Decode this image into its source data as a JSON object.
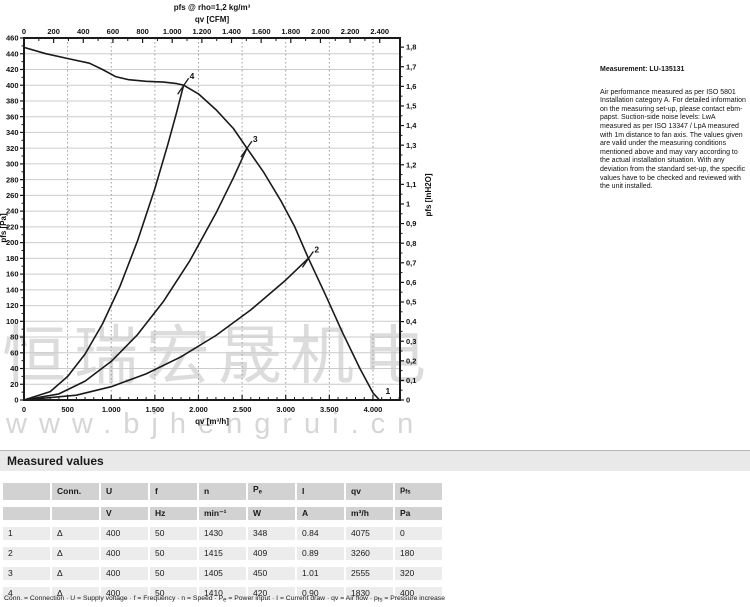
{
  "watermark": {
    "cjk": "恒瑞宏晟机电",
    "url": "www.bjhengrui.cn"
  },
  "info": {
    "measurement": "Measurement: LU-135131",
    "paragraph": "Air performance measured as per ISO 5801 Installation category A. For detailed information on the measuring set-up, please contact ebm-papst. Suction-side noise levels: LwA measured as per ISO 13347 / LpA measured with 1m distance to fan axis. The values given are valid under the measuring conditions mentioned above and may vary according to the actual installation situation. With any deviation from the standard set-up, the specific values have to be checked and reviewed with the unit installed."
  },
  "chart_data": {
    "type": "line",
    "title": "pfs @ rho=1,2 kg/m³",
    "top_axis": {
      "label": "qv [CFM]",
      "tick_values": [
        0,
        200,
        400,
        600,
        800,
        1000,
        1200,
        1400,
        1600,
        1800,
        2000,
        2200,
        2400
      ],
      "tick_labels": [
        "0",
        "200",
        "400",
        "600",
        "800",
        "1.000",
        "1.200",
        "1.400",
        "1.600",
        "1.800",
        "2.000",
        "2.200",
        "2.400"
      ],
      "m3h_per_cfm": 1.699
    },
    "x_axis": {
      "label": "qv [m³/h]",
      "max": 4310,
      "tick_values": [
        0,
        500,
        1000,
        1500,
        2000,
        2500,
        3000,
        3500,
        4000
      ],
      "tick_labels": [
        "0",
        "500",
        "1.000",
        "1.500",
        "2.000",
        "2.500",
        "3.000",
        "3.500",
        "4.000"
      ],
      "grid": [
        500,
        1000,
        1500,
        2000,
        2500,
        3000,
        3500,
        4000
      ],
      "minor_step": 100
    },
    "y_left": {
      "label": "pfs [Pa]",
      "max": 460,
      "step": 20
    },
    "y_right": {
      "label": "pfs [InH2O]",
      "tick_labels": [
        "0",
        "0,1",
        "0,2",
        "0,3",
        "0,4",
        "0,5",
        "0,6",
        "0,7",
        "0,8",
        "0,9",
        "1",
        "1,1",
        "1,2",
        "1,3",
        "1,4",
        "1,5",
        "1,6",
        "1,7",
        "1,8"
      ],
      "step": 0.1,
      "pa_per_unit": 249.1
    },
    "series": [
      {
        "name": "fan-curve",
        "points": [
          [
            0,
            448
          ],
          [
            250,
            440
          ],
          [
            500,
            434
          ],
          [
            750,
            428
          ],
          [
            900,
            420
          ],
          [
            1050,
            411
          ],
          [
            1200,
            407
          ],
          [
            1400,
            405
          ],
          [
            1600,
            404
          ],
          [
            1750,
            402
          ],
          [
            1830,
            400
          ],
          [
            2000,
            389
          ],
          [
            2200,
            369
          ],
          [
            2400,
            345
          ],
          [
            2555,
            320
          ],
          [
            2750,
            289
          ],
          [
            2950,
            252
          ],
          [
            3100,
            221
          ],
          [
            3260,
            180
          ],
          [
            3450,
            135
          ],
          [
            3650,
            86
          ],
          [
            3850,
            40
          ],
          [
            4000,
            9
          ],
          [
            4075,
            0
          ]
        ]
      },
      {
        "name": "load-curve-4",
        "points": [
          [
            0,
            0
          ],
          [
            300,
            10.7
          ],
          [
            500,
            29.9
          ],
          [
            700,
            58.5
          ],
          [
            900,
            96.7
          ],
          [
            1100,
            144.5
          ],
          [
            1300,
            201.8
          ],
          [
            1500,
            268.7
          ],
          [
            1650,
            325.1
          ],
          [
            1750,
            365.8
          ],
          [
            1830,
            400
          ]
        ]
      },
      {
        "name": "load-curve-3",
        "points": [
          [
            0,
            0
          ],
          [
            400,
            7.8
          ],
          [
            700,
            24
          ],
          [
            1000,
            49
          ],
          [
            1300,
            82.9
          ],
          [
            1600,
            125.5
          ],
          [
            1900,
            176.9
          ],
          [
            2200,
            237.3
          ],
          [
            2400,
            282.4
          ],
          [
            2555,
            320
          ]
        ]
      },
      {
        "name": "load-curve-2",
        "points": [
          [
            0,
            0
          ],
          [
            600,
            6.1
          ],
          [
            1000,
            16.9
          ],
          [
            1400,
            33.2
          ],
          [
            1800,
            54.9
          ],
          [
            2200,
            82
          ],
          [
            2600,
            114.5
          ],
          [
            3000,
            152.4
          ],
          [
            3260,
            180
          ]
        ]
      }
    ],
    "point_labels": [
      {
        "text": "4",
        "q": 1830,
        "pa": 400,
        "leader": true
      },
      {
        "text": "3",
        "q": 2555,
        "pa": 320,
        "leader": true
      },
      {
        "text": "2",
        "q": 3260,
        "pa": 180,
        "leader": true
      },
      {
        "text": "1",
        "q": 4075,
        "pa": 0,
        "leader": false
      }
    ]
  },
  "table": {
    "section_title": "Measured values",
    "headers": [
      {
        "t": ""
      },
      {
        "t": "Conn."
      },
      {
        "t": "U"
      },
      {
        "t": "f"
      },
      {
        "t": "n"
      },
      {
        "t": "P",
        "s": "e"
      },
      {
        "t": "I"
      },
      {
        "t": "qv"
      },
      {
        "t": "p",
        "s": "fs"
      }
    ],
    "units": [
      "",
      "",
      "V",
      "Hz",
      "min⁻¹",
      "W",
      "A",
      "m³/h",
      "Pa"
    ],
    "rows": [
      [
        "1",
        "Δ",
        "400",
        "50",
        "1430",
        "348",
        "0.84",
        "4075",
        "0"
      ],
      [
        "2",
        "Δ",
        "400",
        "50",
        "1415",
        "409",
        "0.89",
        "3260",
        "180"
      ],
      [
        "3",
        "Δ",
        "400",
        "50",
        "1405",
        "450",
        "1.01",
        "2555",
        "320"
      ],
      [
        "4",
        "Δ",
        "400",
        "50",
        "1410",
        "420",
        "0.90",
        "1830",
        "400"
      ]
    ],
    "footnote": {
      "p1": "Conn. = Connection · U = Supply voltage · f = Frequency · n = Speed · P",
      "s1": "e",
      "p2": " = Power input · I = Current draw · qv = Air flow · p",
      "s2": "fs",
      "p3": " = Pressure increase"
    }
  }
}
